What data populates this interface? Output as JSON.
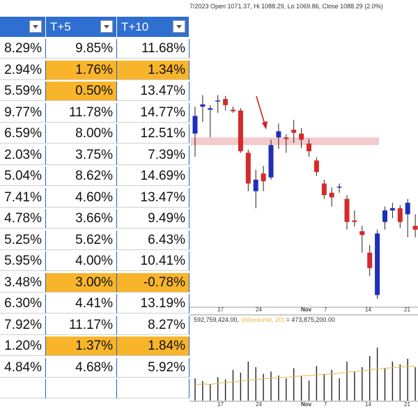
{
  "sheet": {
    "headers": [
      {
        "label": ""
      },
      {
        "label": "T+5"
      },
      {
        "label": "T+10"
      }
    ],
    "rows": [
      {
        "c0": "8.29%",
        "c1": "9.85%",
        "c2": "11.68%",
        "hl1": false,
        "hl2": false
      },
      {
        "c0": "2.94%",
        "c1": "1.76%",
        "c2": "1.34%",
        "hl1": true,
        "hl2": true
      },
      {
        "c0": "5.59%",
        "c1": "0.50%",
        "c2": "13.47%",
        "hl1": true,
        "hl2": false
      },
      {
        "c0": "9.77%",
        "c1": "11.78%",
        "c2": "14.77%",
        "hl1": false,
        "hl2": false
      },
      {
        "c0": "6.59%",
        "c1": "8.00%",
        "c2": "12.51%",
        "hl1": false,
        "hl2": false
      },
      {
        "c0": "2.03%",
        "c1": "3.75%",
        "c2": "7.39%",
        "hl1": false,
        "hl2": false
      },
      {
        "c0": "5.04%",
        "c1": "8.62%",
        "c2": "14.69%",
        "hl1": false,
        "hl2": false
      },
      {
        "c0": "7.41%",
        "c1": "4.60%",
        "c2": "13.47%",
        "hl1": false,
        "hl2": false
      },
      {
        "c0": "4.78%",
        "c1": "3.66%",
        "c2": "9.49%",
        "hl1": false,
        "hl2": false
      },
      {
        "c0": "5.25%",
        "c1": "5.62%",
        "c2": "6.43%",
        "hl1": false,
        "hl2": false
      },
      {
        "c0": "5.95%",
        "c1": "4.00%",
        "c2": "10.41%",
        "hl1": false,
        "hl2": false
      },
      {
        "c0": "3.48%",
        "c1": "3.00%",
        "c2": "-0.78%",
        "hl1": true,
        "hl2": true
      },
      {
        "c0": "6.30%",
        "c1": "4.41%",
        "c2": "13.19%",
        "hl1": false,
        "hl2": false
      },
      {
        "c0": "7.92%",
        "c1": "11.17%",
        "c2": "8.27%",
        "hl1": false,
        "hl2": false
      },
      {
        "c0": "1.20%",
        "c1": "1.37%",
        "c2": "1.84%",
        "hl1": true,
        "hl2": true
      },
      {
        "c0": "4.84%",
        "c1": "4.68%",
        "c2": "5.92%",
        "hl1": false,
        "hl2": false
      },
      {
        "c0": "",
        "c1": "",
        "c2": "",
        "hl1": false,
        "hl2": false
      }
    ],
    "colors": {
      "header": "#2f6fd0",
      "highlight": "#f8b52c",
      "gridline": "#2a5fb0"
    }
  },
  "chart": {
    "info": "7/2023 Open 1071.37, Hi 1088.29, Lo 1069.86, Close 1088.29 (2.0%)",
    "volume_info_value": "592,759,424.00,",
    "volume_info_ma_label": "Vol(volume, 20)",
    "volume_info_ma_value": "= 473,875,200.00",
    "x_ticks": [
      "17",
      "24",
      "Nov",
      "7",
      "14",
      "21"
    ],
    "colors": {
      "up": "#1f2fb8",
      "down": "#d42a2a",
      "band": "#f2b8b8",
      "arrow": "#cc2222",
      "volume_ma": "#e8b84c"
    },
    "candles": [
      {
        "o": 1045,
        "h": 1080,
        "l": 1015,
        "c": 1068,
        "dir": "up"
      },
      {
        "o": 1080,
        "h": 1095,
        "l": 1060,
        "c": 1083,
        "dir": "up"
      },
      {
        "o": 1078,
        "h": 1082,
        "l": 1040,
        "c": 1076,
        "dir": "up"
      },
      {
        "o": 1088,
        "h": 1095,
        "l": 1072,
        "c": 1088,
        "dir": "up"
      },
      {
        "o": 1090,
        "h": 1094,
        "l": 1075,
        "c": 1082,
        "dir": "down"
      },
      {
        "o": 1076,
        "h": 1080,
        "l": 1072,
        "c": 1074,
        "dir": "down"
      },
      {
        "o": 1075,
        "h": 1078,
        "l": 1020,
        "c": 1022,
        "dir": "down"
      },
      {
        "o": 1020,
        "h": 1024,
        "l": 970,
        "c": 980,
        "dir": "down"
      },
      {
        "o": 970,
        "h": 998,
        "l": 948,
        "c": 985,
        "dir": "up"
      },
      {
        "o": 993,
        "h": 1003,
        "l": 970,
        "c": 983,
        "dir": "down"
      },
      {
        "o": 988,
        "h": 1037,
        "l": 985,
        "c": 1030,
        "dir": "up"
      },
      {
        "o": 1040,
        "h": 1058,
        "l": 1025,
        "c": 1048,
        "dir": "up"
      },
      {
        "o": 1040,
        "h": 1044,
        "l": 1020,
        "c": 1038,
        "dir": "down"
      },
      {
        "o": 1050,
        "h": 1063,
        "l": 1033,
        "c": 1046,
        "dir": "down"
      },
      {
        "o": 1045,
        "h": 1052,
        "l": 1026,
        "c": 1037,
        "dir": "down"
      },
      {
        "o": 1032,
        "h": 1038,
        "l": 1015,
        "c": 1022,
        "dir": "down"
      },
      {
        "o": 1010,
        "h": 1014,
        "l": 990,
        "c": 995,
        "dir": "down"
      },
      {
        "o": 980,
        "h": 985,
        "l": 960,
        "c": 965,
        "dir": "down"
      },
      {
        "o": 962,
        "h": 975,
        "l": 950,
        "c": 968,
        "dir": "down"
      },
      {
        "o": 975,
        "h": 980,
        "l": 968,
        "c": 976,
        "dir": "up"
      },
      {
        "o": 960,
        "h": 965,
        "l": 920,
        "c": 930,
        "dir": "down"
      },
      {
        "o": 932,
        "h": 945,
        "l": 924,
        "c": 930,
        "dir": "down"
      },
      {
        "o": 918,
        "h": 925,
        "l": 890,
        "c": 913,
        "dir": "down"
      },
      {
        "o": 890,
        "h": 900,
        "l": 860,
        "c": 870,
        "dir": "down"
      },
      {
        "o": 835,
        "h": 920,
        "l": 830,
        "c": 915,
        "dir": "up"
      },
      {
        "o": 930,
        "h": 950,
        "l": 920,
        "c": 945,
        "dir": "up"
      },
      {
        "o": 945,
        "h": 955,
        "l": 935,
        "c": 948,
        "dir": "up"
      },
      {
        "o": 948,
        "h": 952,
        "l": 922,
        "c": 930,
        "dir": "down"
      },
      {
        "o": 940,
        "h": 960,
        "l": 910,
        "c": 955,
        "dir": "up"
      },
      {
        "o": 925,
        "h": 940,
        "l": 910,
        "c": 920,
        "dir": "down"
      }
    ],
    "volumes": [
      40,
      35,
      30,
      42,
      38,
      55,
      50,
      70,
      60,
      48,
      52,
      45,
      40,
      58,
      44,
      36,
      62,
      48,
      55,
      40,
      70,
      52,
      60,
      80,
      95,
      58,
      70,
      65,
      75,
      60
    ],
    "price_band": [
      1030,
      1040
    ],
    "volume_ma": [
      28,
      30,
      29,
      31,
      32,
      34,
      35,
      37,
      38,
      39,
      40,
      41,
      42,
      43,
      44,
      45,
      46,
      47,
      48,
      49,
      51,
      52,
      53,
      55,
      57,
      58,
      59,
      60,
      61,
      62
    ]
  }
}
